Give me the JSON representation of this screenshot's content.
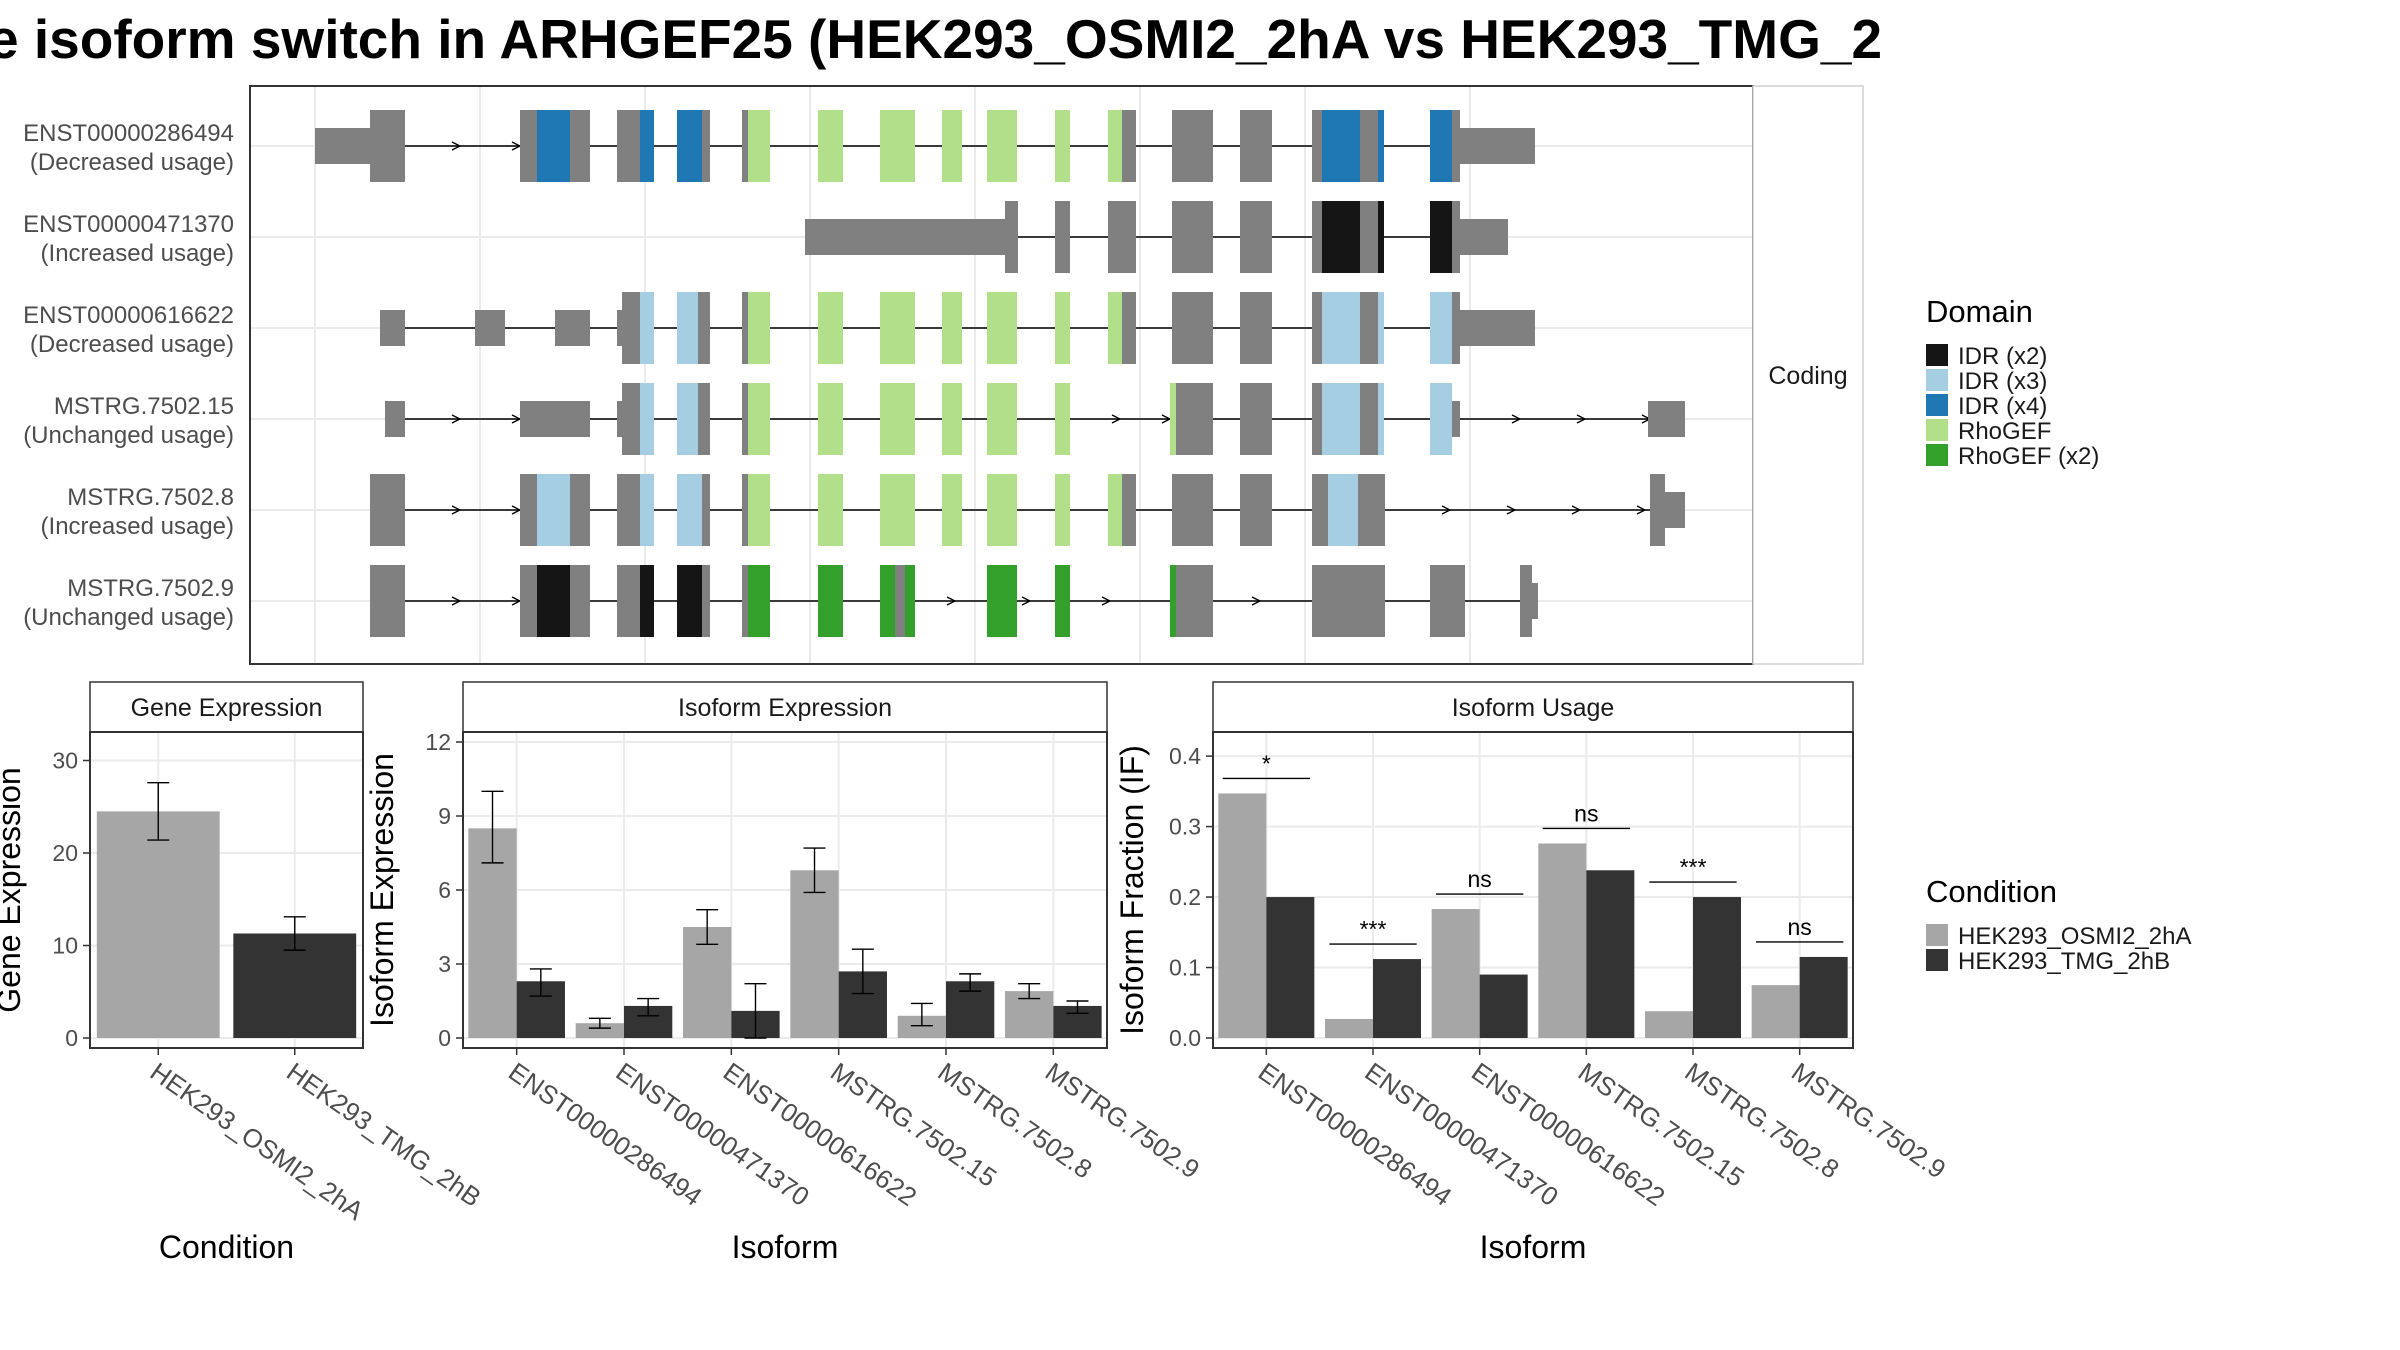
{
  "title": "e isoform switch in ARHGEF25 (HEK293_OSMI2_2hA vs HEK293_TMG_2",
  "colors": {
    "cond_a": "#a6a6a6",
    "cond_b": "#333333",
    "noncoding_exon": "#808080",
    "IDR (x2)": "#151515",
    "IDR (x3)": "#a6cee3",
    "IDR (x4)": "#1f78b4",
    "RhoGEF": "#b2df8a",
    "RhoGEF (x2)": "#33a02c"
  },
  "structure": {
    "facet_label": "Coding",
    "transcripts": [
      {
        "id": "ENST00000286494",
        "usage": "(Decreased usage)"
      },
      {
        "id": "ENST00000471370",
        "usage": "(Increased usage)"
      },
      {
        "id": "ENST00000616622",
        "usage": "(Decreased usage)"
      },
      {
        "id": "MSTRG.7502.15",
        "usage": "(Unchanged usage)"
      },
      {
        "id": "MSTRG.7502.8",
        "usage": "(Increased usage)"
      },
      {
        "id": "MSTRG.7502.9",
        "usage": "(Unchanged usage)"
      }
    ]
  },
  "legend_domain": {
    "title": "Domain",
    "items": [
      "IDR (x2)",
      "IDR (x3)",
      "IDR (x4)",
      "RhoGEF",
      "RhoGEF (x2)"
    ]
  },
  "legend_condition": {
    "title": "Condition",
    "items": [
      "HEK293_OSMI2_2hA",
      "HEK293_TMG_2hB"
    ]
  },
  "chart_data": [
    {
      "type": "bar",
      "title": "Gene Expression",
      "xlabel": "Condition",
      "ylabel": "Gene Expression",
      "ylim": [
        0,
        32
      ],
      "yticks": [
        0,
        10,
        20,
        30
      ],
      "categories": [
        "HEK293_OSMI2_2hA",
        "HEK293_TMG_2hB"
      ],
      "values": [
        24.5,
        11.3
      ],
      "errors": [
        [
          21.4,
          27.6
        ],
        [
          9.5,
          13.1
        ]
      ]
    },
    {
      "type": "bar",
      "title": "Isoform Expression",
      "xlabel": "Isoform",
      "ylabel": "Isoform Expression",
      "ylim": [
        0,
        12
      ],
      "yticks": [
        0,
        3,
        6,
        9,
        12
      ],
      "categories": [
        "ENST00000286494",
        "ENST00000471370",
        "ENST00000616622",
        "MSTRG.7502.15",
        "MSTRG.7502.8",
        "MSTRG.7502.9"
      ],
      "series": [
        {
          "name": "HEK293_OSMI2_2hA",
          "values": [
            8.5,
            0.6,
            4.5,
            6.8,
            0.9,
            1.9
          ],
          "errors": [
            [
              7.1,
              10.0
            ],
            [
              0.4,
              0.8
            ],
            [
              3.8,
              5.2
            ],
            [
              5.9,
              7.7
            ],
            [
              0.5,
              1.4
            ],
            [
              1.6,
              2.2
            ]
          ]
        },
        {
          "name": "HEK293_TMG_2hB",
          "values": [
            2.3,
            1.3,
            1.1,
            2.7,
            2.3,
            1.3
          ],
          "errors": [
            [
              1.7,
              2.8
            ],
            [
              0.9,
              1.6
            ],
            [
              0.0,
              2.2
            ],
            [
              1.8,
              3.6
            ],
            [
              1.9,
              2.6
            ],
            [
              1.0,
              1.5
            ]
          ]
        }
      ]
    },
    {
      "type": "bar",
      "title": "Isoform Usage",
      "xlabel": "Isoform",
      "ylabel": "Isoform Fraction (IF)",
      "ylim": [
        0,
        0.42
      ],
      "yticks": [
        0.0,
        0.1,
        0.2,
        0.3,
        0.4
      ],
      "ytick_labels": [
        "0.0",
        "0.1",
        "0.2",
        "0.3",
        "0.4"
      ],
      "categories": [
        "ENST00000286494",
        "ENST00000471370",
        "ENST00000616622",
        "MSTRG.7502.15",
        "MSTRG.7502.8",
        "MSTRG.7502.9"
      ],
      "series": [
        {
          "name": "HEK293_OSMI2_2hA",
          "values": [
            0.347,
            0.027,
            0.183,
            0.276,
            0.038,
            0.075
          ]
        },
        {
          "name": "HEK293_TMG_2hB",
          "values": [
            0.2,
            0.112,
            0.09,
            0.238,
            0.2,
            0.115
          ]
        }
      ],
      "significance": [
        "*",
        "***",
        "ns",
        "ns",
        "***",
        "ns"
      ]
    }
  ]
}
